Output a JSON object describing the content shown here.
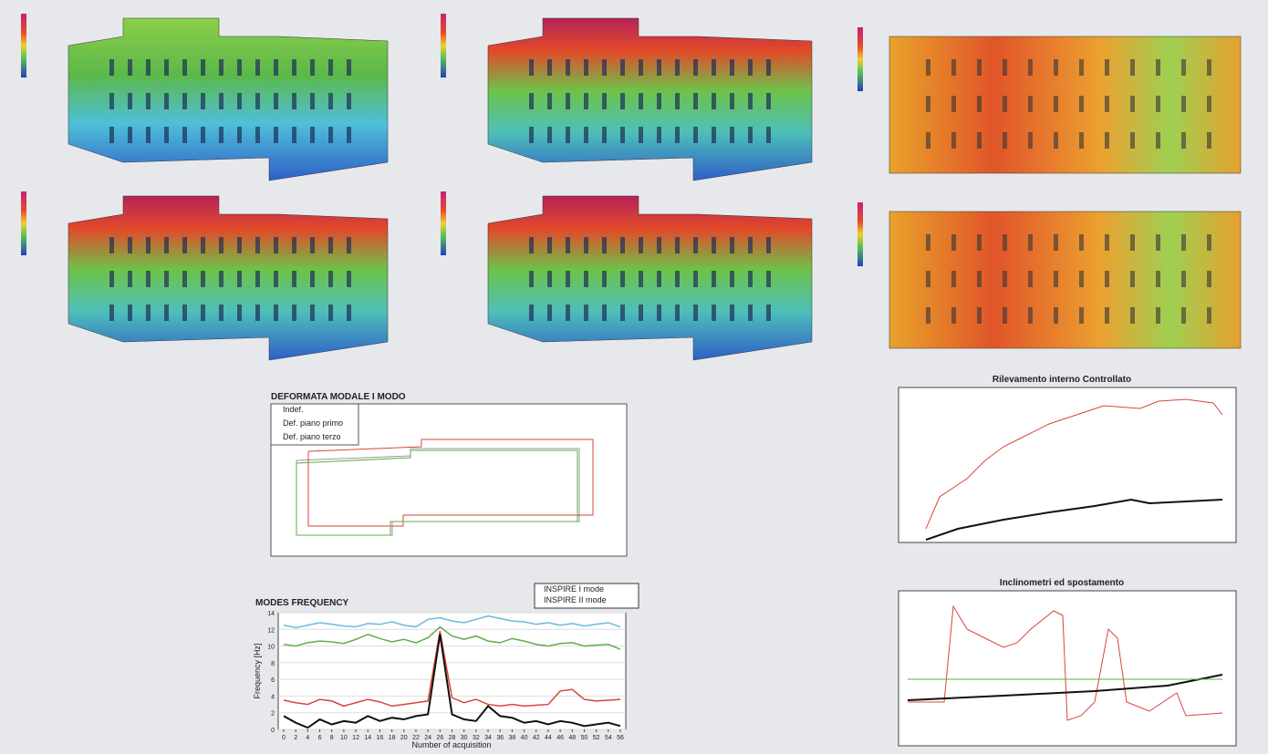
{
  "deformation": {
    "title": "DEFORMATA MODALE I MODO",
    "legend": [
      "Indef.",
      "Def. piano primo",
      "Def. piano terzo"
    ]
  },
  "frequency": {
    "chart_data": {
      "type": "line",
      "title": "MODES FREQUENCY",
      "x_label": "Number of acquisition",
      "y_label": "Frequency [Hz]",
      "legend": [
        "INSPIRE I mode",
        "INSPIRE II mode"
      ],
      "x": [
        0,
        2,
        4,
        6,
        8,
        10,
        12,
        14,
        16,
        18,
        20,
        22,
        24,
        26,
        28,
        30,
        32,
        34,
        36,
        38,
        40,
        42,
        44,
        46,
        48,
        50,
        52,
        54,
        56
      ],
      "xlim": [
        0,
        56
      ],
      "xticks": [
        0,
        2,
        4,
        6,
        8,
        10,
        12,
        14,
        16,
        18,
        20,
        22,
        24,
        26,
        28,
        30,
        32,
        34,
        36,
        38,
        40,
        42,
        44,
        46,
        48,
        50,
        52,
        54,
        56
      ],
      "ylim": [
        0,
        14
      ],
      "yticks": [
        0,
        2,
        4,
        6,
        8,
        10,
        12,
        14
      ],
      "series": [
        {
          "color": "#6cb8e0",
          "values": [
            12.5,
            12.2,
            12.5,
            12.8,
            12.6,
            12.4,
            12.3,
            12.7,
            12.6,
            12.9,
            12.5,
            12.3,
            13.2,
            13.4,
            13.0,
            12.8,
            13.2,
            13.6,
            13.3,
            13.0,
            12.9,
            12.6,
            12.8,
            12.5,
            12.7,
            12.4,
            12.6,
            12.8,
            12.3
          ]
        },
        {
          "color": "#5fae4a",
          "values": [
            10.2,
            10.0,
            10.4,
            10.6,
            10.5,
            10.3,
            10.8,
            11.4,
            10.9,
            10.5,
            10.8,
            10.4,
            11.0,
            12.3,
            11.2,
            10.8,
            11.2,
            10.6,
            10.4,
            10.9,
            10.6,
            10.2,
            10.0,
            10.3,
            10.4,
            10.0,
            10.1,
            10.2,
            9.6
          ]
        },
        {
          "color": "#d9443a",
          "values": [
            3.5,
            3.2,
            3.0,
            3.6,
            3.4,
            2.8,
            3.2,
            3.6,
            3.3,
            2.8,
            3.0,
            3.2,
            3.4,
            11.8,
            3.8,
            3.2,
            3.6,
            3.0,
            2.8,
            3.0,
            2.8,
            2.9,
            3.0,
            4.6,
            4.8,
            3.6,
            3.4,
            3.5,
            3.6
          ]
        },
        {
          "color": "#111111",
          "values": [
            1.6,
            0.8,
            0.2,
            1.2,
            0.6,
            1.0,
            0.8,
            1.6,
            1.0,
            1.4,
            1.2,
            1.6,
            1.8,
            11.4,
            1.8,
            1.2,
            1.0,
            2.8,
            1.6,
            1.4,
            0.8,
            1.0,
            0.6,
            1.0,
            0.8,
            0.4,
            0.6,
            0.8,
            0.4
          ]
        }
      ]
    }
  },
  "monitor": {
    "title_top": "Rilevamento interno Controllato",
    "title_bottom": "Inclinometri ed spostamento"
  }
}
